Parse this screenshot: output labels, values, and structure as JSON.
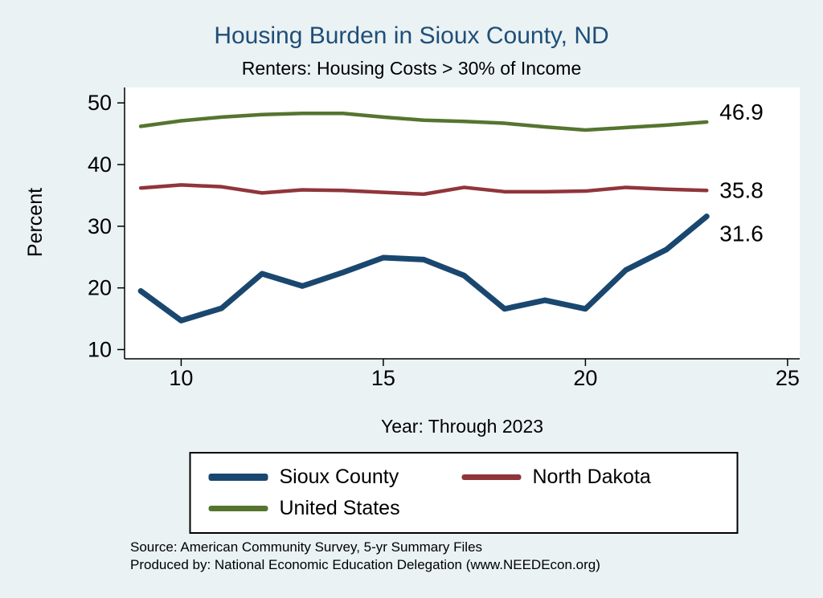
{
  "title": "Housing Burden in Sioux County, ND",
  "subtitle": "Renters: Housing Costs > 30% of Income",
  "colors": {
    "background": "#eaf2f3",
    "title_text": "#1f4e79",
    "plot_background": "#ffffff",
    "axis": "#000000",
    "sioux_county": "#1a476f",
    "north_dakota": "#90353b",
    "united_states": "#55752f"
  },
  "chart_data": {
    "type": "line",
    "title": "Housing Burden in Sioux County, ND",
    "subtitle": "Renters: Housing Costs > 30% of Income",
    "xlabel": "Year: Through 2023",
    "ylabel": "Percent",
    "x": [
      9,
      10,
      11,
      12,
      13,
      14,
      15,
      16,
      17,
      18,
      19,
      20,
      21,
      22,
      23
    ],
    "series": [
      {
        "name": "Sioux County",
        "color": "#1a476f",
        "width": 7,
        "values": [
          19.5,
          14.7,
          16.7,
          22.3,
          20.3,
          22.5,
          24.9,
          24.6,
          22.0,
          16.6,
          18.0,
          16.6,
          22.9,
          26.2,
          31.6
        ],
        "end_label": "31.6",
        "label_dy": 22
      },
      {
        "name": "North Dakota",
        "color": "#90353b",
        "width": 4.5,
        "values": [
          36.2,
          36.7,
          36.4,
          35.4,
          35.9,
          35.8,
          35.5,
          35.2,
          36.3,
          35.6,
          35.6,
          35.7,
          36.3,
          36.0,
          35.8
        ],
        "end_label": "35.8",
        "label_dy": 0
      },
      {
        "name": "United States",
        "color": "#55752f",
        "width": 4.5,
        "values": [
          46.2,
          47.1,
          47.7,
          48.1,
          48.3,
          48.3,
          47.7,
          47.2,
          47.0,
          46.7,
          46.1,
          45.6,
          46.0,
          46.4,
          46.9
        ],
        "end_label": "46.9",
        "label_dy": -12
      }
    ],
    "xticks": [
      10,
      15,
      20,
      25
    ],
    "yticks": [
      10,
      20,
      30,
      40,
      50
    ],
    "xlim": [
      8.6,
      25.3
    ],
    "ylim": [
      8.5,
      52.5
    ],
    "grid": false,
    "legend_position": "bottom"
  },
  "legend": {
    "items": [
      {
        "label": "Sioux County"
      },
      {
        "label": "North Dakota"
      },
      {
        "label": "United States"
      }
    ]
  },
  "footer": {
    "source": "Source: American Community Survey, 5-yr Summary Files",
    "produced_by": "Produced by: National Economic Education Delegation (www.NEEDEcon.org)"
  }
}
